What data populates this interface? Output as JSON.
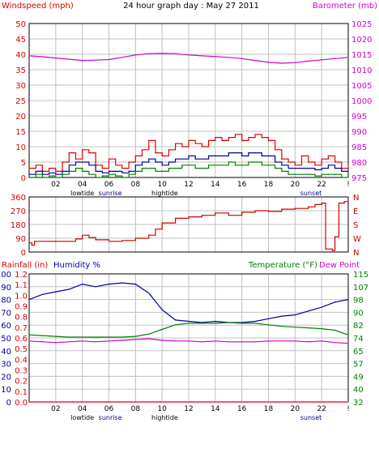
{
  "header": {
    "title": "24 hour graph day : May 27 2011",
    "left_label": "Windspeed (mph)",
    "right_label": "Barometer (mb)"
  },
  "colors": {
    "wind_gust": "#e00000",
    "wind_avg": "#0000a0",
    "wind_min": "#008000",
    "barometer": "#d000d0",
    "direction": "#d00000",
    "humidity": "#0000a0",
    "temperature": "#008000",
    "dewpoint": "#d000d0",
    "rainfall": "#e00000",
    "grid": "#c0c0c0",
    "frame": "#000000"
  },
  "time_axis": {
    "ticks": [
      "02",
      "04",
      "06",
      "08",
      "10",
      "12",
      "14",
      "16",
      "18",
      "20",
      "22",
      "!"
    ],
    "events_panel1": [
      {
        "label": "lowtide",
        "hour": 4.0,
        "color": "#000000"
      },
      {
        "label": "sunrise",
        "hour": 6.1,
        "color": "#000080"
      },
      {
        "label": "hightide",
        "hour": 10.2,
        "color": "#000000"
      },
      {
        "label": "sunset",
        "hour": 21.2,
        "color": "#000080"
      }
    ],
    "events_panel3": [
      {
        "label": "lowtide",
        "hour": 4.0,
        "color": "#000000"
      },
      {
        "label": "sunrise",
        "hour": 6.1,
        "color": "#000080"
      },
      {
        "label": "hightide",
        "hour": 10.2,
        "color": "#000000"
      },
      {
        "label": "sunset",
        "hour": 21.2,
        "color": "#000080"
      }
    ]
  },
  "chart_data": [
    {
      "type": "line",
      "title": "24 hour graph day : May 27 2011",
      "ylabel": "Windspeed (mph)",
      "ylim": [
        0,
        50
      ],
      "yticks": [
        "0",
        "5",
        "10",
        "15",
        "20",
        "25",
        "30",
        "35",
        "40",
        "45",
        "50"
      ],
      "y2label": "Barometer (mb)",
      "y2lim": [
        975,
        1025
      ],
      "y2ticks": [
        "975",
        "980",
        "985",
        "990",
        "995",
        "1000",
        "1005",
        "1010",
        "1015",
        "1020",
        "1025"
      ],
      "series": [
        {
          "key": "wind_gust",
          "axis": "left",
          "x": [
            0,
            0.5,
            1,
            1.5,
            2,
            2.5,
            3,
            3.5,
            4,
            4.5,
            5,
            5.5,
            6,
            6.5,
            7,
            7.5,
            8,
            8.5,
            9,
            9.5,
            10,
            10.5,
            11,
            11.5,
            12,
            12.5,
            13,
            13.5,
            14,
            14.5,
            15,
            15.5,
            16,
            16.5,
            17,
            17.5,
            18,
            18.5,
            19,
            19.5,
            20,
            20.5,
            21,
            21.5,
            22,
            22.5,
            23,
            23.5,
            24
          ],
          "values": [
            3,
            4,
            2,
            3,
            2,
            5,
            8,
            6,
            9,
            8,
            4,
            3,
            6,
            4,
            3,
            5,
            7,
            9,
            12,
            8,
            7,
            9,
            11,
            10,
            12,
            11,
            10,
            12,
            13,
            12,
            13,
            14,
            12,
            13,
            14,
            13,
            12,
            9,
            6,
            5,
            4,
            7,
            5,
            4,
            6,
            7,
            5,
            3,
            4
          ]
        },
        {
          "key": "wind_avg",
          "axis": "left",
          "x": [
            0,
            0.5,
            1,
            1.5,
            2,
            2.5,
            3,
            3.5,
            4,
            4.5,
            5,
            5.5,
            6,
            6.5,
            7,
            7.5,
            8,
            8.5,
            9,
            9.5,
            10,
            10.5,
            11,
            11.5,
            12,
            12.5,
            13,
            13.5,
            14,
            14.5,
            15,
            15.5,
            16,
            16.5,
            17,
            17.5,
            18,
            18.5,
            19,
            19.5,
            20,
            20.5,
            21,
            21.5,
            22,
            22.5,
            23,
            23.5,
            24
          ],
          "values": [
            1,
            2,
            1,
            1.5,
            1,
            2,
            4,
            5,
            5,
            4,
            2,
            1.5,
            2,
            2,
            1.5,
            2,
            4,
            5,
            6,
            5,
            4,
            5,
            6,
            6,
            7,
            6,
            6,
            7,
            7,
            7,
            8,
            8,
            7,
            8,
            8,
            7,
            7,
            5,
            4,
            3,
            3,
            3,
            3,
            2.5,
            3,
            4,
            3,
            2,
            2
          ]
        },
        {
          "key": "wind_min",
          "axis": "left",
          "x": [
            0,
            0.5,
            1,
            1.5,
            2,
            2.5,
            3,
            3.5,
            4,
            4.5,
            5,
            5.5,
            6,
            6.5,
            7,
            7.5,
            8,
            8.5,
            9,
            9.5,
            10,
            10.5,
            11,
            11.5,
            12,
            12.5,
            13,
            13.5,
            14,
            14.5,
            15,
            15.5,
            16,
            16.5,
            17,
            17.5,
            18,
            18.5,
            19,
            19.5,
            20,
            20.5,
            21,
            21.5,
            22,
            22.5,
            23,
            23.5,
            24
          ],
          "values": [
            0,
            1,
            0,
            0.5,
            0,
            1,
            2,
            3,
            2,
            1,
            0,
            0.5,
            1,
            0.5,
            0,
            1,
            2,
            3,
            3,
            2,
            2,
            3,
            3,
            4,
            4,
            3,
            3,
            4,
            4,
            4,
            5,
            4,
            4,
            5,
            5,
            4,
            4,
            3,
            2,
            1,
            1,
            1,
            1,
            0.5,
            1,
            1,
            1,
            0,
            0
          ]
        },
        {
          "key": "barometer",
          "axis": "right",
          "x": [
            0,
            1,
            2,
            3,
            4,
            5,
            6,
            7,
            8,
            9,
            10,
            11,
            12,
            13,
            14,
            15,
            16,
            17,
            18,
            19,
            20,
            21,
            22,
            23,
            24
          ],
          "values": [
            1014.5,
            1014.2,
            1013.8,
            1013.4,
            1013.0,
            1013.1,
            1013.3,
            1014.0,
            1014.8,
            1015.2,
            1015.3,
            1015.2,
            1014.8,
            1014.5,
            1014.3,
            1014.0,
            1013.6,
            1013.0,
            1012.4,
            1012.1,
            1012.3,
            1012.8,
            1013.2,
            1013.6,
            1014.0
          ]
        }
      ]
    },
    {
      "type": "line",
      "ylim": [
        0,
        360
      ],
      "yticks": [
        "0",
        "90",
        "180",
        "270",
        "360"
      ],
      "y2ticks": [
        "N",
        "W",
        "S",
        "E",
        "N"
      ],
      "series": [
        {
          "key": "direction",
          "axis": "left",
          "x": [
            0,
            0.2,
            0.4,
            2,
            3.5,
            4.0,
            4.5,
            5.0,
            6.0,
            7.0,
            8.0,
            9.0,
            9.5,
            10.0,
            11.0,
            12.0,
            13.0,
            14.0,
            15.0,
            16.0,
            17.0,
            18.0,
            19.0,
            20.0,
            21.0,
            21.5,
            22.0,
            22.3,
            22.8,
            23.0,
            23.3,
            23.7,
            24
          ],
          "values": [
            60,
            45,
            70,
            70,
            85,
            110,
            95,
            80,
            70,
            75,
            90,
            110,
            150,
            190,
            220,
            230,
            240,
            255,
            240,
            260,
            270,
            265,
            280,
            285,
            295,
            310,
            320,
            20,
            10,
            100,
            320,
            330,
            330
          ]
        }
      ]
    },
    {
      "type": "line",
      "ylabel": "Rainfall (in)",
      "ylabel2": "Humidity %",
      "y2label": "Temperature (°F)",
      "y2label2": "Dew Point",
      "humidity_ticks": [
        "0",
        "10",
        "20",
        "30",
        "40",
        "50",
        "60",
        "70",
        "80",
        "90",
        "100"
      ],
      "rain_ticks": [
        "0.0",
        "0.1",
        "0.2",
        "0.3",
        "0.4",
        "0.5",
        "0.6",
        "0.7",
        "0.8",
        "0.9",
        "1.0",
        "1.1",
        "1.2"
      ],
      "ylim": [
        0,
        100
      ],
      "y2lim": [
        32,
        115
      ],
      "y2ticks": [
        "32",
        "40",
        "49",
        "57",
        "65",
        "74",
        "82",
        "90",
        "98",
        "107",
        "115"
      ],
      "series": [
        {
          "key": "humidity",
          "axis": "left",
          "x": [
            0,
            1,
            2,
            3,
            4,
            5,
            6,
            7,
            8,
            9,
            10,
            11,
            12,
            13,
            14,
            15,
            16,
            17,
            18,
            19,
            20,
            21,
            22,
            23,
            24
          ],
          "values": [
            80,
            84,
            86,
            88,
            92,
            90,
            92,
            93,
            92,
            85,
            72,
            64,
            63,
            62,
            63,
            62,
            62,
            63,
            65,
            67,
            68,
            71,
            74,
            78,
            80
          ]
        },
        {
          "key": "temperature",
          "axis": "right",
          "x": [
            0,
            1,
            2,
            3,
            4,
            5,
            6,
            7,
            8,
            9,
            10,
            11,
            12,
            13,
            14,
            15,
            16,
            17,
            18,
            19,
            20,
            21,
            22,
            23,
            24
          ],
          "values": [
            75.5,
            75.0,
            74.5,
            74.0,
            74.0,
            74.0,
            74.0,
            74.0,
            74.5,
            76.0,
            79.0,
            82.0,
            83.0,
            83.0,
            83.0,
            83.5,
            83.0,
            83.0,
            82.0,
            81.0,
            80.5,
            80.0,
            79.5,
            78.5,
            75.5
          ]
        },
        {
          "key": "dewpoint",
          "axis": "right",
          "x": [
            0,
            1,
            2,
            3,
            4,
            5,
            6,
            7,
            8,
            9,
            10,
            11,
            12,
            13,
            14,
            15,
            16,
            17,
            18,
            19,
            20,
            21,
            22,
            23,
            24
          ],
          "values": [
            71.5,
            71.0,
            70.5,
            71.0,
            71.5,
            71.0,
            71.5,
            72.0,
            72.5,
            73.0,
            72.0,
            71.5,
            71.5,
            71.0,
            71.5,
            71.0,
            71.0,
            71.0,
            71.5,
            71.5,
            71.5,
            71.0,
            71.5,
            70.5,
            70.0
          ]
        },
        {
          "key": "rainfall",
          "axis": "left",
          "x": [
            0,
            24
          ],
          "values": [
            0,
            0
          ]
        }
      ]
    }
  ]
}
